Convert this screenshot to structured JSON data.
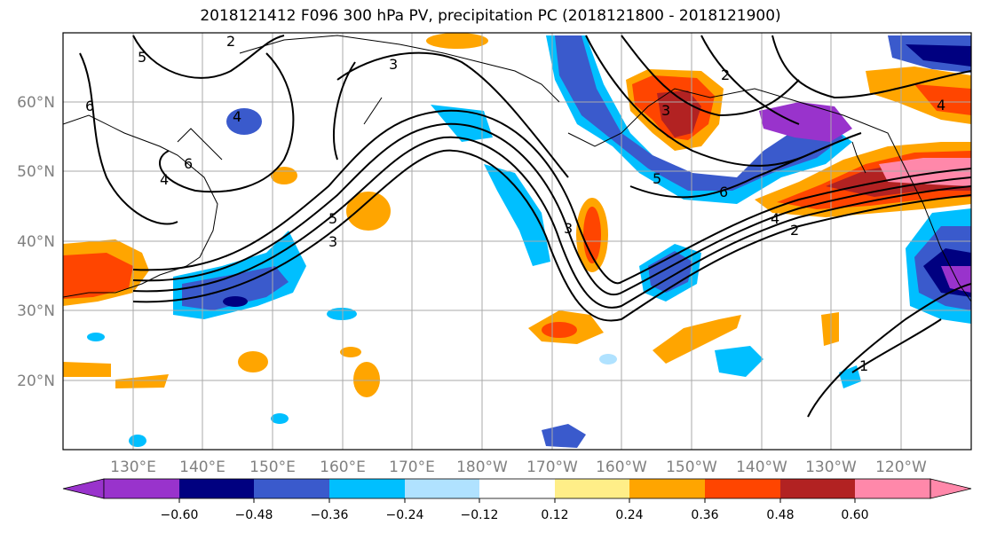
{
  "title": "2018121412 F096 300 hPa PV, precipitation PC (2018121800 - 2018121900)",
  "lat_labels": [
    "60°N",
    "50°N",
    "40°N",
    "30°N",
    "20°N"
  ],
  "lon_labels": [
    "130°E",
    "140°E",
    "150°E",
    "160°E",
    "170°E",
    "180°W",
    "170°W",
    "160°W",
    "150°W",
    "140°W",
    "130°W",
    "120°W"
  ],
  "colorbar": {
    "colors": [
      "#9933cc",
      "#000080",
      "#3a5acc",
      "#00bfff",
      "#b0e2ff",
      "#ffffff",
      "#ffee88",
      "#ffa500",
      "#ff4500",
      "#b22222",
      "#ff88aa"
    ],
    "ticks": [
      "−0.60",
      "−0.48",
      "−0.36",
      "−0.24",
      "−0.12",
      "0.12",
      "0.24",
      "0.36",
      "0.48",
      "0.60"
    ]
  },
  "contour_labels": [
    "2",
    "3",
    "5",
    "6",
    "4",
    "6",
    "4",
    "5",
    "3",
    "3",
    "3",
    "2",
    "5",
    "6",
    "4",
    "2",
    "1",
    "4"
  ]
}
